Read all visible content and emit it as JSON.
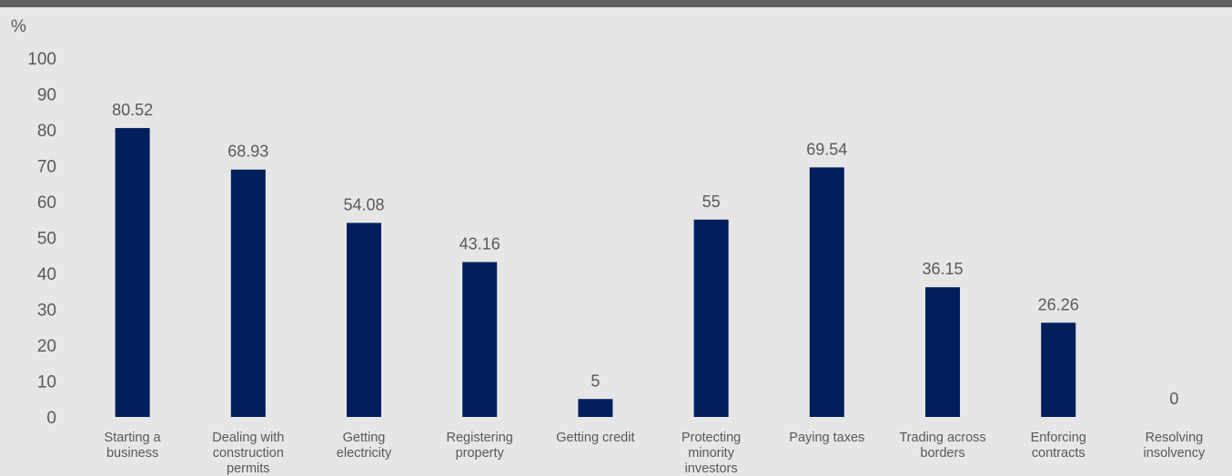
{
  "chart_data": {
    "type": "bar",
    "unit_label": "%",
    "ylim": [
      0,
      100
    ],
    "yticks": [
      0,
      10,
      20,
      30,
      40,
      50,
      60,
      70,
      80,
      90,
      100
    ],
    "categories": [
      [
        "Starting a",
        "business"
      ],
      [
        "Dealing with",
        "construction",
        "permits"
      ],
      [
        "Getting",
        "electricity"
      ],
      [
        "Registering",
        "property"
      ],
      [
        "Getting credit"
      ],
      [
        "Protecting",
        "minority",
        "investors"
      ],
      [
        "Paying taxes"
      ],
      [
        "Trading across",
        "borders"
      ],
      [
        "Enforcing",
        "contracts"
      ],
      [
        "Resolving",
        "insolvency"
      ]
    ],
    "values": [
      80.52,
      68.93,
      54.08,
      43.16,
      5,
      55,
      69.54,
      36.15,
      26.26,
      0
    ],
    "data_labels": [
      "80.52",
      "68.93",
      "54.08",
      "43.16",
      "5",
      "55",
      "69.54",
      "36.15",
      "26.26",
      "0"
    ],
    "bar_color": "#001f5b",
    "grid": false
  }
}
